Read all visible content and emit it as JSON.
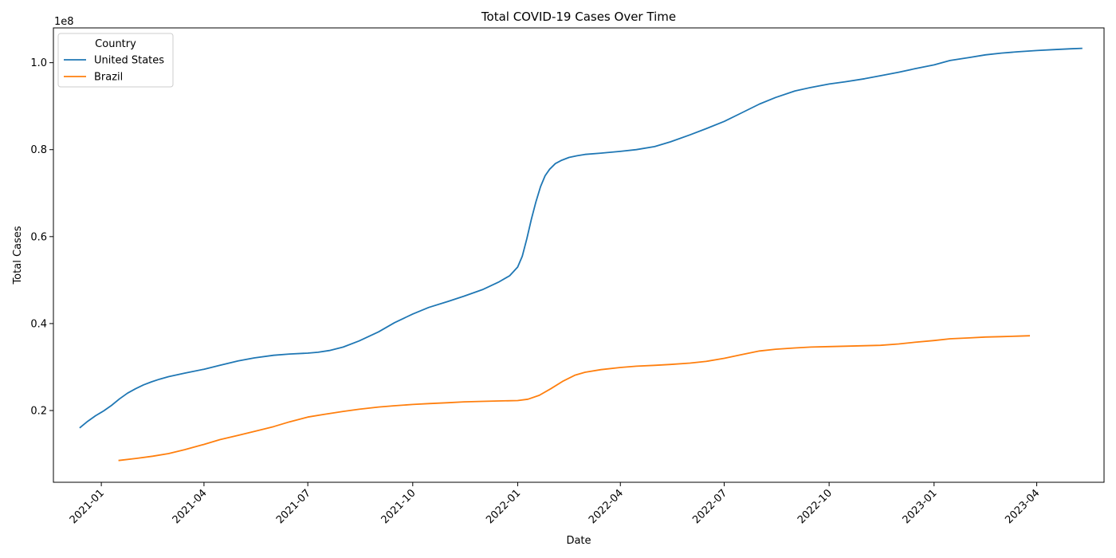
{
  "chart_data": {
    "type": "line",
    "title": "Total COVID-19 Cases Over Time",
    "xlabel": "Date",
    "ylabel": "Total Cases",
    "y_scale_label": "1e8",
    "xlim": [
      "2020-11-20",
      "2023-05-30"
    ],
    "ylim": [
      0.035,
      1.08
    ],
    "x_ticks": [
      "2021-01",
      "2021-04",
      "2021-07",
      "2021-10",
      "2022-01",
      "2022-04",
      "2022-07",
      "2022-10",
      "2023-01",
      "2023-04"
    ],
    "y_ticks": [
      "0.2",
      "0.4",
      "0.6",
      "0.8",
      "1.0"
    ],
    "grid": false,
    "legend": {
      "title": "Country",
      "placement": "top-left"
    },
    "series": [
      {
        "name": "United States",
        "color": "#1f77b4",
        "x": [
          "2020-12-13",
          "2020-12-20",
          "2020-12-27",
          "2021-01-03",
          "2021-01-10",
          "2021-01-17",
          "2021-01-24",
          "2021-01-31",
          "2021-02-07",
          "2021-02-14",
          "2021-02-21",
          "2021-03-01",
          "2021-03-15",
          "2021-04-01",
          "2021-04-15",
          "2021-05-01",
          "2021-05-15",
          "2021-06-01",
          "2021-06-15",
          "2021-07-01",
          "2021-07-10",
          "2021-07-20",
          "2021-08-01",
          "2021-08-15",
          "2021-09-01",
          "2021-09-15",
          "2021-10-01",
          "2021-10-15",
          "2021-11-01",
          "2021-11-15",
          "2021-12-01",
          "2021-12-15",
          "2021-12-25",
          "2022-01-01",
          "2022-01-05",
          "2022-01-09",
          "2022-01-13",
          "2022-01-17",
          "2022-01-21",
          "2022-01-25",
          "2022-01-29",
          "2022-02-03",
          "2022-02-08",
          "2022-02-15",
          "2022-02-22",
          "2022-03-01",
          "2022-03-15",
          "2022-04-01",
          "2022-04-15",
          "2022-05-01",
          "2022-05-15",
          "2022-06-01",
          "2022-06-15",
          "2022-07-01",
          "2022-07-15",
          "2022-08-01",
          "2022-08-15",
          "2022-09-01",
          "2022-09-15",
          "2022-10-01",
          "2022-10-15",
          "2022-11-01",
          "2022-11-15",
          "2022-12-01",
          "2022-12-15",
          "2023-01-01",
          "2023-01-15",
          "2023-02-01",
          "2023-02-15",
          "2023-03-01",
          "2023-03-15",
          "2023-04-01",
          "2023-04-15",
          "2023-05-01",
          "2023-05-11"
        ],
        "values": [
          0.16,
          0.175,
          0.188,
          0.199,
          0.212,
          0.227,
          0.24,
          0.25,
          0.259,
          0.266,
          0.272,
          0.278,
          0.286,
          0.295,
          0.304,
          0.314,
          0.321,
          0.327,
          0.33,
          0.332,
          0.334,
          0.338,
          0.346,
          0.36,
          0.381,
          0.402,
          0.422,
          0.437,
          0.451,
          0.463,
          0.478,
          0.495,
          0.51,
          0.53,
          0.555,
          0.595,
          0.64,
          0.68,
          0.715,
          0.74,
          0.755,
          0.768,
          0.775,
          0.782,
          0.786,
          0.789,
          0.792,
          0.796,
          0.8,
          0.807,
          0.818,
          0.834,
          0.848,
          0.865,
          0.883,
          0.905,
          0.92,
          0.935,
          0.943,
          0.951,
          0.956,
          0.963,
          0.97,
          0.978,
          0.986,
          0.995,
          1.005,
          1.012,
          1.018,
          1.022,
          1.025,
          1.028,
          1.03,
          1.032,
          1.033
        ]
      },
      {
        "name": "Brazil",
        "color": "#ff7f0e",
        "x": [
          "2021-01-16",
          "2021-02-01",
          "2021-02-15",
          "2021-03-01",
          "2021-03-15",
          "2021-04-01",
          "2021-04-15",
          "2021-05-01",
          "2021-05-15",
          "2021-06-01",
          "2021-06-15",
          "2021-07-01",
          "2021-07-15",
          "2021-08-01",
          "2021-08-15",
          "2021-09-01",
          "2021-09-15",
          "2021-10-01",
          "2021-10-15",
          "2021-11-01",
          "2021-11-15",
          "2021-12-01",
          "2021-12-15",
          "2022-01-01",
          "2022-01-10",
          "2022-01-20",
          "2022-01-30",
          "2022-02-10",
          "2022-02-20",
          "2022-03-01",
          "2022-03-15",
          "2022-04-01",
          "2022-04-15",
          "2022-05-01",
          "2022-05-15",
          "2022-06-01",
          "2022-06-15",
          "2022-07-01",
          "2022-07-15",
          "2022-08-01",
          "2022-08-15",
          "2022-09-01",
          "2022-09-15",
          "2022-10-01",
          "2022-10-15",
          "2022-11-01",
          "2022-11-15",
          "2022-12-01",
          "2022-12-15",
          "2023-01-01",
          "2023-01-15",
          "2023-02-01",
          "2023-02-15",
          "2023-03-01",
          "2023-03-15",
          "2023-03-26"
        ],
        "values": [
          0.085,
          0.09,
          0.095,
          0.101,
          0.11,
          0.122,
          0.133,
          0.143,
          0.152,
          0.163,
          0.174,
          0.185,
          0.191,
          0.198,
          0.203,
          0.208,
          0.211,
          0.214,
          0.216,
          0.218,
          0.22,
          0.221,
          0.222,
          0.223,
          0.226,
          0.235,
          0.25,
          0.268,
          0.281,
          0.288,
          0.294,
          0.299,
          0.302,
          0.304,
          0.306,
          0.309,
          0.313,
          0.32,
          0.328,
          0.337,
          0.341,
          0.344,
          0.346,
          0.347,
          0.348,
          0.349,
          0.35,
          0.353,
          0.357,
          0.361,
          0.365,
          0.367,
          0.369,
          0.37,
          0.371,
          0.372
        ]
      }
    ]
  }
}
